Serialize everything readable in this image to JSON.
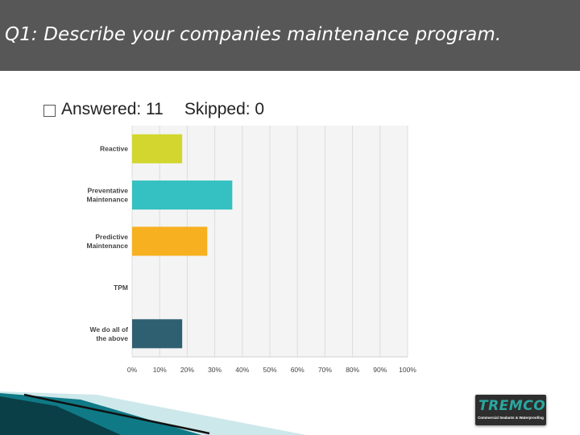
{
  "header": {
    "title": "Q1: Describe your companies maintenance program."
  },
  "stats": {
    "answered_label": "Answered: 11",
    "skipped_label": "Skipped: 0"
  },
  "chart_data": {
    "type": "bar",
    "orientation": "horizontal",
    "categories": [
      [
        "Reactive"
      ],
      [
        "Preventative",
        "Maintenance"
      ],
      [
        "Predictive",
        "Maintenance"
      ],
      [
        "TPM"
      ],
      [
        "We do all of",
        "the above"
      ]
    ],
    "values": [
      18.18,
      36.36,
      27.27,
      0,
      18.18
    ],
    "colors": [
      "#d2d62e",
      "#35c0c1",
      "#f7b01f",
      "#e03c5f",
      "#2f6071"
    ],
    "xticks": [
      "0%",
      "10%",
      "20%",
      "30%",
      "40%",
      "50%",
      "60%",
      "70%",
      "80%",
      "90%",
      "100%"
    ],
    "xlim": [
      0,
      100
    ],
    "grid": true
  },
  "logo": {
    "brand": "TREMCO",
    "tagline": "Commercial Sealants & Waterproofing"
  }
}
